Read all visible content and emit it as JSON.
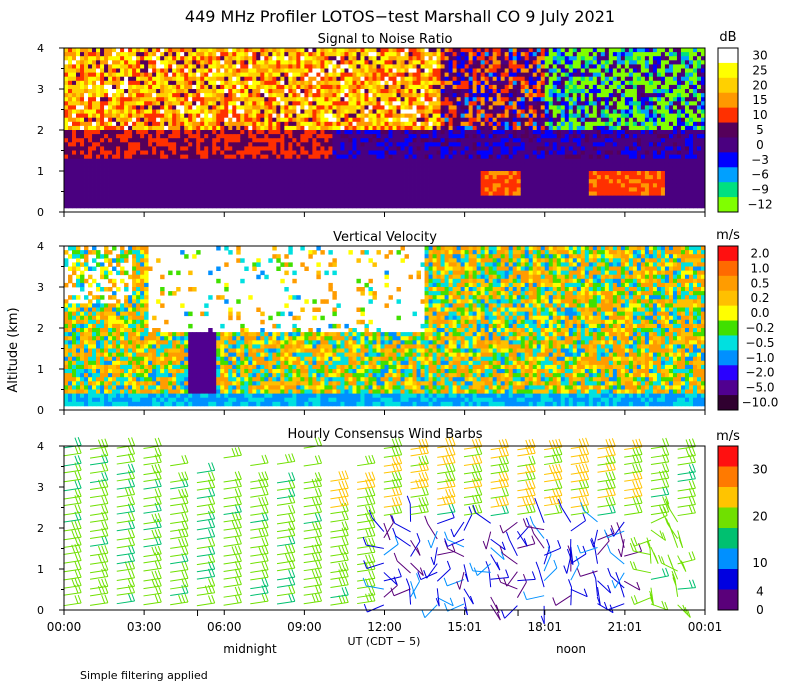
{
  "chart_data": [
    {
      "type": "heatmap",
      "id": "snr",
      "figure_title": "449 MHz Profiler LOTOS−test Marshall CO  9 July 2021",
      "title": "Signal to Noise Ratio",
      "ylabel": "Altitude (km)",
      "ylim": [
        0,
        4
      ],
      "y_ticks": [
        "0",
        "1",
        "2",
        "3",
        "4"
      ],
      "unit": "dB",
      "colorbar_labels": [
        "30",
        "25",
        "20",
        "15",
        "10",
        "5",
        "0",
        "−3",
        "−6",
        "−9",
        "−12"
      ],
      "colorbar_colors": [
        "#ffffff",
        "#ffff00",
        "#ffd000",
        "#ff9900",
        "#ff3000",
        "#55005a",
        "#4a0080",
        "#0000ff",
        "#00a0ff",
        "#00e080",
        "#80ff00"
      ],
      "description_levels": "low levels 0.2-1.5 km mostly 0 to 5 dB; 2-4 km high SNR 15-30 dB in early hours; enhanced 10-15 dB near 1 km around 15:00-22:00 UT"
    },
    {
      "type": "heatmap",
      "id": "vvel",
      "title": "Vertical Velocity",
      "ylim": [
        0,
        4
      ],
      "y_ticks": [
        "0",
        "1",
        "2",
        "3",
        "4"
      ],
      "unit": "m/s",
      "colorbar_labels": [
        "2.0",
        "1.0",
        "0.5",
        "0.2",
        "0.0",
        "−0.2",
        "−0.5",
        "−1.0",
        "−2.0",
        "−5.0",
        "−10.0"
      ],
      "colorbar_colors": [
        "#ff1010",
        "#ff6a00",
        "#ff9c00",
        "#ffc000",
        "#ffff00",
        "#40e000",
        "#00e0e0",
        "#0090ff",
        "#2a00ff",
        "#500090",
        "#300030"
      ]
    },
    {
      "type": "scatter",
      "id": "wind",
      "title": "Hourly Consensus Wind Barbs",
      "ylim": [
        0,
        4
      ],
      "y_ticks": [
        "0",
        "1",
        "2",
        "3",
        "4"
      ],
      "unit": "m/s",
      "colorbar_labels": [
        "30",
        "20",
        "10",
        "4",
        "0"
      ],
      "colorbar_values": [
        30,
        20,
        10,
        4,
        0
      ],
      "colorbar_colors": [
        "#ff1010",
        "#ff7a00",
        "#ffc400",
        "#70e000",
        "#00c070",
        "#0090ff",
        "#0000e0",
        "#5a007a"
      ]
    }
  ],
  "x_axis": {
    "xlim_hours": [
      0,
      24
    ],
    "tick_hours": [
      0,
      3,
      6,
      9,
      12,
      15,
      18,
      21,
      24
    ],
    "tick_labels": [
      "00:00",
      "03:00",
      "06:00",
      "09:00",
      "12:00",
      "15:01",
      "18:01",
      "21:01",
      "00:01"
    ],
    "xlabel": "UT  (CDT − 5)",
    "midnight_label": "midnight",
    "midnight_hour": 5,
    "noon_label": "noon",
    "noon_hour": 17
  },
  "footnote": "Simple filtering applied"
}
